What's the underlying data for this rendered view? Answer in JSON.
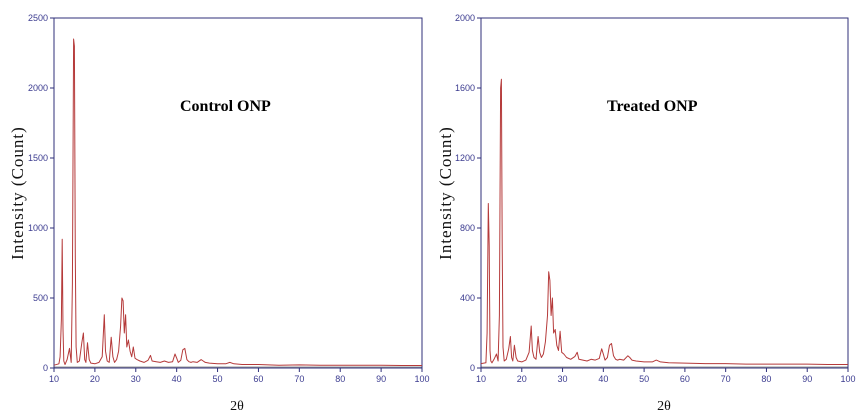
{
  "chart_data": [
    {
      "type": "line",
      "title": "Control ONP",
      "xlabel": "2θ",
      "ylabel": "Intensity (Count)",
      "xlim": [
        10,
        100
      ],
      "ylim": [
        0,
        2500
      ],
      "xticks": [
        10,
        20,
        30,
        40,
        50,
        60,
        70,
        80,
        90,
        100
      ],
      "yticks": [
        0,
        500,
        1000,
        1500,
        2000,
        2500
      ],
      "grid": false,
      "line_color": "#b53a3a",
      "series": [
        {
          "x": [
            10,
            11.2,
            11.5,
            11.8,
            12.0,
            12.2,
            12.4,
            12.7,
            13.2,
            13.8,
            14.2,
            14.5,
            14.8,
            15.0,
            15.2,
            15.4,
            15.7,
            16.2,
            16.8,
            17.2,
            17.5,
            17.8,
            18.2,
            18.6,
            19.0,
            20.0,
            21.0,
            21.8,
            22.3,
            22.6,
            23.0,
            23.5,
            24.0,
            24.4,
            24.8,
            25.3,
            25.8,
            26.3,
            26.6,
            26.9,
            27.2,
            27.5,
            27.8,
            28.2,
            28.6,
            29.0,
            29.4,
            29.8,
            30.3,
            31.0,
            32.0,
            33.0,
            33.6,
            34.0,
            35.0,
            36.0,
            37.0,
            38.0,
            39.0,
            39.6,
            40.0,
            40.4,
            41.0,
            41.5,
            42.0,
            42.5,
            43.0,
            43.5,
            44.0,
            45.0,
            46.0,
            46.5,
            47.0,
            48.0,
            50.0,
            52.0,
            53.0,
            54.0,
            56.0,
            60.0,
            65.0,
            70.0,
            75.0,
            80.0,
            85.0,
            90.0,
            95.0,
            100.0
          ],
          "y": [
            20,
            30,
            80,
            350,
            920,
            280,
            50,
            25,
            60,
            140,
            40,
            600,
            2350,
            2300,
            800,
            150,
            40,
            50,
            180,
            250,
            60,
            40,
            180,
            60,
            35,
            30,
            40,
            80,
            380,
            120,
            50,
            40,
            220,
            80,
            40,
            60,
            120,
            300,
            500,
            480,
            250,
            380,
            150,
            200,
            120,
            80,
            150,
            70,
            60,
            50,
            40,
            55,
            90,
            50,
            45,
            40,
            50,
            40,
            45,
            100,
            70,
            40,
            55,
            130,
            140,
            60,
            45,
            40,
            45,
            40,
            60,
            50,
            40,
            35,
            30,
            30,
            40,
            30,
            25,
            25,
            20,
            22,
            20,
            20,
            20,
            20,
            18,
            18
          ]
        }
      ]
    },
    {
      "type": "line",
      "title": "Treated ONP",
      "xlabel": "2θ",
      "ylabel": "Intensity (Count)",
      "xlim": [
        10,
        100
      ],
      "ylim": [
        0,
        2000
      ],
      "xticks": [
        10,
        20,
        30,
        40,
        50,
        60,
        70,
        80,
        90,
        100
      ],
      "yticks": [
        0,
        400,
        800,
        1200,
        1600,
        2000
      ],
      "grid": false,
      "line_color": "#b53a3a",
      "series": [
        {
          "x": [
            10,
            11.2,
            11.5,
            11.8,
            12.0,
            12.2,
            12.4,
            12.7,
            13.2,
            13.8,
            14.2,
            14.5,
            14.8,
            15.0,
            15.2,
            15.4,
            15.7,
            16.2,
            16.8,
            17.2,
            17.5,
            17.8,
            18.2,
            18.6,
            19.0,
            20.0,
            21.0,
            21.8,
            22.3,
            22.6,
            23.0,
            23.5,
            24.0,
            24.4,
            24.8,
            25.3,
            25.8,
            26.3,
            26.6,
            26.9,
            27.2,
            27.5,
            27.8,
            28.2,
            28.6,
            29.0,
            29.4,
            29.8,
            30.3,
            31.0,
            32.0,
            33.0,
            33.6,
            34.0,
            35.0,
            36.0,
            37.0,
            38.0,
            39.0,
            39.6,
            40.0,
            40.4,
            41.0,
            41.5,
            42.0,
            42.5,
            43.0,
            43.5,
            44.0,
            45.0,
            46.0,
            46.5,
            47.0,
            48.0,
            50.0,
            52.0,
            53.0,
            54.0,
            56.0,
            60.0,
            65.0,
            70.0,
            75.0,
            80.0,
            85.0,
            90.0,
            95.0,
            100.0
          ],
          "y": [
            25,
            30,
            200,
            940,
            700,
            100,
            40,
            30,
            50,
            80,
            40,
            300,
            1600,
            1650,
            700,
            120,
            40,
            50,
            110,
            180,
            60,
            40,
            130,
            60,
            40,
            35,
            45,
            90,
            240,
            100,
            60,
            50,
            180,
            90,
            60,
            80,
            150,
            300,
            550,
            500,
            300,
            400,
            200,
            220,
            130,
            100,
            210,
            90,
            80,
            60,
            50,
            65,
            90,
            50,
            45,
            40,
            50,
            45,
            55,
            110,
            80,
            45,
            60,
            130,
            140,
            70,
            50,
            45,
            50,
            45,
            70,
            60,
            45,
            40,
            35,
            35,
            45,
            35,
            30,
            28,
            25,
            25,
            22,
            22,
            22,
            22,
            20,
            20
          ]
        }
      ]
    }
  ]
}
